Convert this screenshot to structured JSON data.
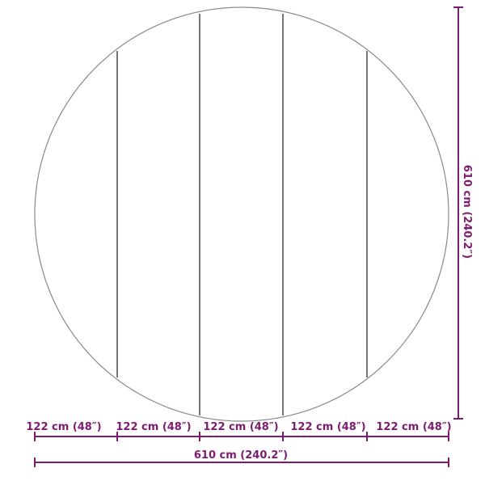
{
  "segment_labels": [
    "122 cm (48″)",
    "122 cm (48″)",
    "122 cm (48″)",
    "122 cm (48″)",
    "122 cm (48″)"
  ],
  "width_label": "610 cm (240.2″)",
  "height_label": "610 cm (240.2″)",
  "colors": {
    "dimension": "#7d1b70",
    "outline": "#8a8a8a",
    "plank_line": "#555555"
  }
}
